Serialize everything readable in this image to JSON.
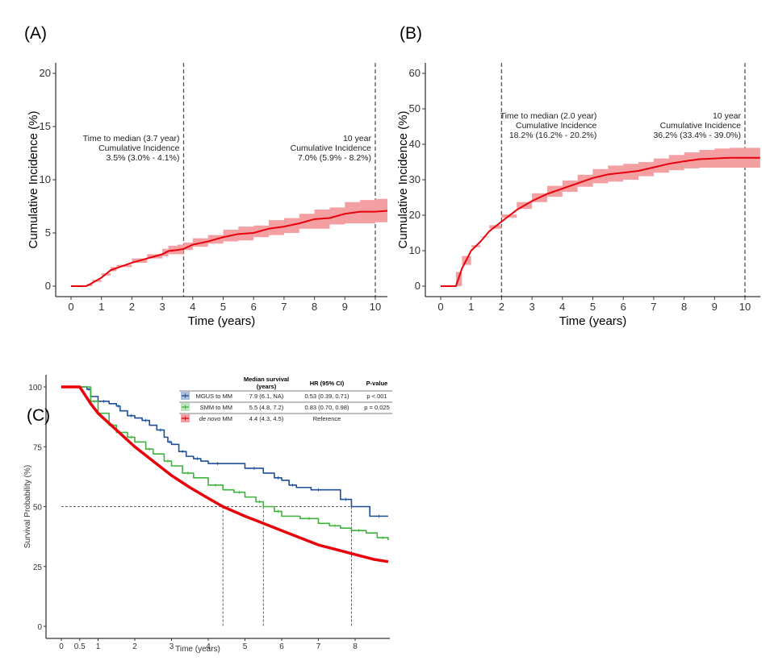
{
  "chart_data": [
    {
      "id": "A",
      "type": "line",
      "panel_label": "(A)",
      "title": "",
      "xlabel": "Time (years)",
      "ylabel": "Cumulative Incidence (%)",
      "xlim": [
        -0.5,
        10.5
      ],
      "ylim": [
        -1,
        21
      ],
      "xticks": [
        0,
        1,
        2,
        3,
        4,
        5,
        6,
        7,
        8,
        9,
        10
      ],
      "yticks": [
        0,
        5,
        10,
        15,
        20
      ],
      "grid": false,
      "series": [
        {
          "name": "Cumulative incidence",
          "color": "#e8000b",
          "band_color": "#f4a0a3",
          "x": [
            0,
            0.5,
            0.7,
            1.0,
            1.3,
            1.5,
            2.0,
            2.5,
            3.0,
            3.2,
            3.5,
            3.7,
            4.0,
            4.5,
            5.0,
            5.5,
            6.0,
            6.5,
            7.0,
            7.5,
            8.0,
            8.5,
            9.0,
            9.5,
            10.0,
            10.5
          ],
          "y": [
            0,
            0,
            0.3,
            0.8,
            1.5,
            1.7,
            2.2,
            2.6,
            3.0,
            3.3,
            3.4,
            3.5,
            3.9,
            4.2,
            4.6,
            4.9,
            5.0,
            5.4,
            5.6,
            5.9,
            6.3,
            6.4,
            6.8,
            7.0,
            7.0,
            7.1
          ],
          "lower": [
            0,
            0,
            0.2,
            0.6,
            1.2,
            1.4,
            1.8,
            2.2,
            2.6,
            2.8,
            3.0,
            3.0,
            3.4,
            3.7,
            4.0,
            4.2,
            4.3,
            4.6,
            4.8,
            5.0,
            5.4,
            5.4,
            5.8,
            5.9,
            5.9,
            6.0
          ],
          "upper": [
            0,
            0,
            0.4,
            1.0,
            1.8,
            2.0,
            2.6,
            3.0,
            3.5,
            3.8,
            3.9,
            4.1,
            4.5,
            4.8,
            5.3,
            5.6,
            5.7,
            6.2,
            6.4,
            6.8,
            7.2,
            7.4,
            7.9,
            8.1,
            8.2,
            8.3
          ]
        }
      ],
      "reference_lines": [
        {
          "x": 3.7,
          "style": "dashed"
        },
        {
          "x": 10,
          "style": "dashed"
        }
      ],
      "annotations": [
        {
          "anchor_x": 3.7,
          "side": "left",
          "lines": [
            "Time to median (3.7 year)",
            "Cumulative Incidence",
            "3.5% (3.0% - 4.1%)"
          ]
        },
        {
          "anchor_x": 10,
          "side": "left",
          "lines": [
            "10 year",
            "Cumulative Incidence",
            "7.0% (5.9% - 8.2%)"
          ]
        }
      ]
    },
    {
      "id": "B",
      "type": "line",
      "panel_label": "(B)",
      "title": "",
      "xlabel": "Time (years)",
      "ylabel": "Cumulative Incidence (%)",
      "xlim": [
        -0.5,
        10.5
      ],
      "ylim": [
        -3,
        63
      ],
      "xticks": [
        0,
        1,
        2,
        3,
        4,
        5,
        6,
        7,
        8,
        9,
        10
      ],
      "yticks": [
        0,
        10,
        20,
        30,
        40,
        50,
        60
      ],
      "grid": false,
      "series": [
        {
          "name": "Cumulative incidence",
          "color": "#e8000b",
          "band_color": "#f4a0a3",
          "x": [
            0,
            0.5,
            0.7,
            1.0,
            1.3,
            1.6,
            2.0,
            2.5,
            3.0,
            3.5,
            4.0,
            4.5,
            5.0,
            5.5,
            6.0,
            6.5,
            7.0,
            7.5,
            8.0,
            8.5,
            9.0,
            9.5,
            10.0,
            10.5
          ],
          "y": [
            0,
            0,
            5,
            10,
            12.5,
            15.5,
            18.2,
            21.5,
            24,
            26,
            27.5,
            29,
            30.5,
            31.5,
            32,
            32.5,
            33.5,
            34.5,
            35.2,
            35.8,
            36.0,
            36.2,
            36.2,
            36.2
          ],
          "lower": [
            0,
            0,
            4,
            8.5,
            11,
            13.8,
            16.2,
            19.3,
            21.8,
            23.7,
            25.2,
            26.6,
            28,
            29,
            29.5,
            30,
            31,
            32,
            32.7,
            33.2,
            33.4,
            33.4,
            33.4,
            33.4
          ],
          "upper": [
            0,
            0,
            6,
            11.5,
            14,
            17.2,
            20.2,
            23.7,
            26.2,
            28.3,
            29.8,
            31.4,
            33,
            34,
            34.5,
            35,
            36,
            37,
            37.7,
            38.4,
            38.8,
            39.0,
            39.0,
            39.0
          ]
        }
      ],
      "reference_lines": [
        {
          "x": 2.0,
          "style": "dashed"
        },
        {
          "x": 10,
          "style": "dashed"
        }
      ],
      "annotations": [
        {
          "anchor_x": 2.0,
          "side": "right",
          "lines": [
            "Time to median (2.0 year)",
            "Cumulative Incidence",
            "18.2% (16.2% - 20.2%)"
          ]
        },
        {
          "anchor_x": 10,
          "side": "left",
          "lines": [
            "10 year",
            "Cumulative Incidence",
            "36.2% (33.4% - 39.0%)"
          ]
        }
      ]
    },
    {
      "id": "C",
      "type": "line",
      "panel_label": "(C)",
      "title": "",
      "xlabel": "Time (years)",
      "ylabel": "Survival Probability (%)",
      "xlim": [
        -0.4,
        8.9
      ],
      "ylim": [
        -5,
        105
      ],
      "xticks": [
        0,
        0.5,
        1,
        2,
        3,
        4,
        5,
        6,
        7,
        8
      ],
      "xtick_labels": [
        "0",
        "0.5",
        "1",
        "2",
        "3",
        "4",
        "5",
        "6",
        "7",
        "8"
      ],
      "yticks": [
        0,
        25,
        50,
        75,
        100
      ],
      "grid": false,
      "median_line": {
        "y": 50,
        "x_drops": [
          4.4,
          5.5,
          7.9
        ]
      },
      "series": [
        {
          "name": "MGUS to MM",
          "italic_prefix": "",
          "color": "#1f4e96",
          "x": [
            0.5,
            0.7,
            0.8,
            1.0,
            1.3,
            1.5,
            1.6,
            1.8,
            2.0,
            2.2,
            2.4,
            2.6,
            2.8,
            2.9,
            3.0,
            3.2,
            3.4,
            3.6,
            3.8,
            4.0,
            4.5,
            5.0,
            5.5,
            5.8,
            6.0,
            6.2,
            6.4,
            6.8,
            7.2,
            7.6,
            7.9,
            8.4,
            8.9
          ],
          "y": [
            100,
            99,
            96,
            94,
            93,
            92,
            90,
            88,
            87,
            86,
            84,
            82,
            79,
            77,
            76,
            73,
            71,
            70,
            69,
            68,
            68,
            66,
            64,
            62,
            61,
            59,
            58,
            57,
            57,
            53,
            50,
            46,
            46
          ]
        },
        {
          "name": "SMM to MM",
          "italic_prefix": "",
          "color": "#3cb43c",
          "x": [
            0.5,
            0.8,
            1.0,
            1.3,
            1.5,
            1.8,
            2.0,
            2.3,
            2.5,
            2.8,
            3.0,
            3.3,
            3.6,
            4.0,
            4.4,
            4.7,
            5.0,
            5.3,
            5.5,
            5.8,
            6.0,
            6.5,
            7.0,
            7.3,
            7.6,
            7.9,
            8.3,
            8.6,
            8.9
          ],
          "y": [
            100,
            94,
            89,
            84,
            81,
            79,
            77,
            74,
            72,
            69,
            67,
            64,
            62,
            59,
            57,
            56,
            54,
            52,
            50,
            48,
            46,
            45,
            43,
            42,
            41,
            40,
            39,
            37,
            36
          ]
        },
        {
          "name": "MM",
          "italic_prefix": "de novo",
          "color": "#e8000b",
          "x": [
            0,
            0.5,
            0.8,
            1.0,
            1.5,
            2.0,
            2.5,
            3.0,
            3.5,
            4.0,
            4.4,
            5.0,
            5.5,
            6.0,
            6.5,
            7.0,
            7.5,
            8.0,
            8.5,
            8.9
          ],
          "y": [
            100,
            100,
            93,
            89,
            82,
            75,
            69,
            63,
            58,
            53.5,
            50,
            46,
            43,
            40,
            37,
            34,
            32,
            30,
            28,
            27
          ]
        }
      ],
      "legend": {
        "placement": "top-right",
        "headers": [
          "",
          "Median survival\n(years)",
          "HR (95% CI)",
          "P-value"
        ],
        "rows": [
          {
            "label": "MGUS to MM",
            "italic": "",
            "median": "7.9 (6.1, NA)",
            "hr": "0.53 (0.39, 0.71)",
            "p": "p <.001",
            "swatch": "#a8bedc",
            "mark": "#1f4e96"
          },
          {
            "label": "SMM to MM",
            "italic": "",
            "median": "5.5 (4.8, 7.2)",
            "hr": "0.83 (0.70, 0.98)",
            "p": "p = 0.025",
            "swatch": "#bfe6bf",
            "mark": "#3cb43c"
          },
          {
            "label": " MM",
            "italic": "de novo",
            "median": "4.4 (4.3, 4.5)",
            "hr": "Reference",
            "p": "",
            "swatch": "#f4a0a3",
            "mark": "#e8000b"
          }
        ]
      }
    }
  ]
}
